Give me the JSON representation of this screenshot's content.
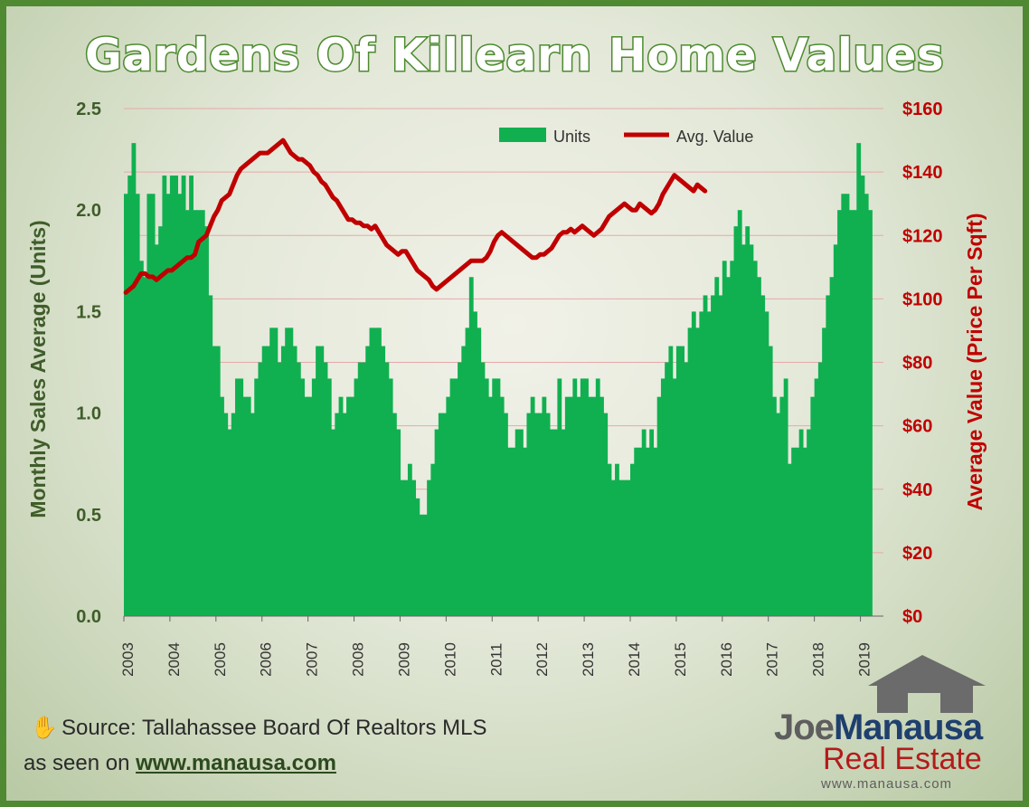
{
  "page": {
    "border_color": "#4f8a33"
  },
  "logo": {
    "part1": "Joe",
    "part2": "Manausa",
    "part3": "Real Estate",
    "url": "www.manausa.com",
    "house_color": "#6b6b6b",
    "text_color": "#1f3f6e",
    "accent_color": "#b31b1b"
  },
  "footer": {
    "source": "Source: Tallahassee Board Of Realtors MLS",
    "seen_prefix": "as seen on ",
    "seen_url": "www.manausa.com",
    "icon": "hand-icon"
  },
  "chart_data": {
    "type": "bar+line",
    "title": "Gardens Of Killearn Home Values",
    "ylabel_left": "Monthly Sales Average (Units)",
    "ylabel_right": "Average Value (Price Per Sqft)",
    "ylim_left": [
      0,
      2.5
    ],
    "ylim_right": [
      0,
      160
    ],
    "yticks_left": [
      "0.0",
      "0.5",
      "1.0",
      "1.5",
      "2.0",
      "2.5"
    ],
    "yticks_right": [
      "$0",
      "$20",
      "$40",
      "$60",
      "$80",
      "$100",
      "$120",
      "$140",
      "$160"
    ],
    "xticks": [
      "2003",
      "2004",
      "2005",
      "2006",
      "2007",
      "2008",
      "2009",
      "2010",
      "2011",
      "2012",
      "2013",
      "2014",
      "2015",
      "2016",
      "2017",
      "2018",
      "2019"
    ],
    "x_start": 2003.0,
    "x_step_months": 1,
    "grid": "horizontal",
    "legend_position": "top-center",
    "colors": {
      "bars": "#10b050",
      "line": "#c00000",
      "left_axis": "#3f5d2a",
      "right_axis": "#c00000"
    },
    "series": [
      {
        "name": "Units",
        "kind": "bar",
        "values": [
          2.08,
          2.17,
          2.33,
          2.08,
          1.75,
          1.67,
          2.08,
          2.08,
          1.83,
          1.92,
          2.17,
          2.08,
          2.17,
          2.17,
          2.08,
          2.17,
          2.0,
          2.17,
          2.0,
          2.0,
          2.0,
          1.92,
          1.58,
          1.33,
          1.33,
          1.08,
          1.0,
          0.92,
          1.0,
          1.17,
          1.17,
          1.08,
          1.08,
          1.0,
          1.17,
          1.25,
          1.33,
          1.33,
          1.42,
          1.42,
          1.25,
          1.33,
          1.42,
          1.42,
          1.33,
          1.25,
          1.17,
          1.08,
          1.08,
          1.17,
          1.33,
          1.33,
          1.25,
          1.17,
          0.92,
          1.0,
          1.08,
          1.0,
          1.08,
          1.08,
          1.17,
          1.25,
          1.25,
          1.33,
          1.42,
          1.42,
          1.42,
          1.33,
          1.25,
          1.17,
          1.0,
          0.92,
          0.67,
          0.67,
          0.75,
          0.67,
          0.58,
          0.5,
          0.5,
          0.67,
          0.75,
          0.92,
          1.0,
          1.0,
          1.08,
          1.17,
          1.17,
          1.25,
          1.33,
          1.42,
          1.67,
          1.5,
          1.42,
          1.25,
          1.17,
          1.08,
          1.17,
          1.17,
          1.08,
          1.0,
          0.83,
          0.83,
          0.92,
          0.92,
          0.83,
          1.0,
          1.08,
          1.0,
          1.0,
          1.08,
          1.0,
          0.92,
          0.92,
          1.17,
          0.92,
          1.08,
          1.08,
          1.17,
          1.08,
          1.17,
          1.17,
          1.08,
          1.08,
          1.17,
          1.08,
          1.0,
          0.75,
          0.67,
          0.75,
          0.67,
          0.67,
          0.67,
          0.75,
          0.83,
          0.83,
          0.92,
          0.83,
          0.92,
          0.83,
          1.08,
          1.17,
          1.25,
          1.33,
          1.17,
          1.33,
          1.33,
          1.25,
          1.42,
          1.5,
          1.42,
          1.5,
          1.58,
          1.5,
          1.58,
          1.67,
          1.58,
          1.75,
          1.67,
          1.75,
          1.92,
          2.0,
          1.83,
          1.92,
          1.83,
          1.75,
          1.67,
          1.58,
          1.5,
          1.33,
          1.08,
          1.0,
          1.08,
          1.17,
          0.75,
          0.83,
          0.83,
          0.92,
          0.83,
          0.92,
          1.08,
          1.17,
          1.25,
          1.42,
          1.58,
          1.67,
          1.83,
          2.0,
          2.08,
          2.08,
          2.0,
          2.0,
          2.33,
          2.17,
          2.08,
          2.0
        ],
        "label_color": "#10b050"
      },
      {
        "name": "Avg. Value",
        "kind": "line",
        "values": [
          102,
          103,
          104,
          106,
          108,
          108,
          107,
          107,
          106,
          107,
          108,
          109,
          109,
          110,
          111,
          112,
          113,
          113,
          114,
          118,
          119,
          120,
          123,
          126,
          128,
          131,
          132,
          133,
          136,
          139,
          141,
          142,
          143,
          144,
          145,
          146,
          146,
          146,
          147,
          148,
          149,
          150,
          148,
          146,
          145,
          144,
          144,
          143,
          142,
          140,
          139,
          137,
          136,
          134,
          132,
          131,
          129,
          127,
          125,
          125,
          124,
          124,
          123,
          123,
          122,
          123,
          121,
          119,
          117,
          116,
          115,
          114,
          115,
          115,
          113,
          111,
          109,
          108,
          107,
          106,
          104,
          103,
          104,
          105,
          106,
          107,
          108,
          109,
          110,
          111,
          112,
          112,
          112,
          112,
          113,
          115,
          118,
          120,
          121,
          120,
          119,
          118,
          117,
          116,
          115,
          114,
          113,
          113,
          114,
          114,
          115,
          116,
          118,
          120,
          121,
          121,
          122,
          121,
          122,
          123,
          122,
          121,
          120,
          121,
          122,
          124,
          126,
          127,
          128,
          129,
          130,
          129,
          128,
          128,
          130,
          129,
          128,
          127,
          128,
          130,
          133,
          135,
          137,
          139,
          138,
          137,
          136,
          135,
          134,
          136,
          135,
          134
        ]
      }
    ]
  }
}
